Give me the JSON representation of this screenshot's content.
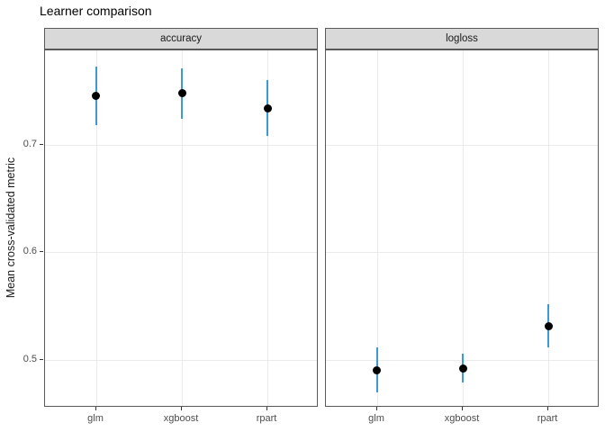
{
  "chart_data": {
    "type": "pointrange",
    "title": "Learner comparison",
    "ylabel": "Mean cross-validated metric",
    "xlabel": "",
    "categories": [
      "glm",
      "xgboost",
      "rpart"
    ],
    "yticks": [
      0.5,
      0.6,
      0.7
    ],
    "ytick_labels": [
      "0.5",
      "0.6",
      "0.7"
    ],
    "ylim": [
      0.4556,
      0.7879
    ],
    "grid": "major-only",
    "legend_position": "none",
    "facets": [
      {
        "label": "accuracy",
        "points": [
          {
            "x": "glm",
            "y": 0.746,
            "ymin": 0.719,
            "ymax": 0.773
          },
          {
            "x": "xgboost",
            "y": 0.748,
            "ymin": 0.724,
            "ymax": 0.771
          },
          {
            "x": "rpart",
            "y": 0.734,
            "ymin": 0.708,
            "ymax": 0.76
          }
        ]
      },
      {
        "label": "logloss",
        "points": [
          {
            "x": "glm",
            "y": 0.49,
            "ymin": 0.47,
            "ymax": 0.512
          },
          {
            "x": "xgboost",
            "y": 0.492,
            "ymin": 0.479,
            "ymax": 0.506
          },
          {
            "x": "rpart",
            "y": 0.531,
            "ymin": 0.512,
            "ymax": 0.552
          }
        ]
      }
    ],
    "colors": {
      "point": "#000000",
      "errorbar": "#3b99d4",
      "grid": "#ebebeb",
      "strip_background": "#d9d9d9",
      "panel_border": "#595959",
      "axis_text": "#4d4d4d",
      "tick": "#333333",
      "background": "#ffffff"
    }
  }
}
